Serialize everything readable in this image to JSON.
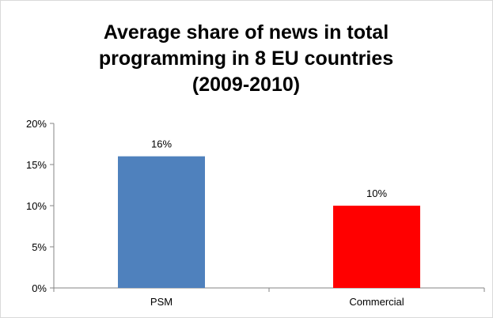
{
  "chart_data": {
    "type": "bar",
    "title": "Average share of news in total programming in 8 EU countries (2009-2010)",
    "title_lines": [
      "Average share of news in total",
      "programming in 8 EU countries",
      "(2009-2010)"
    ],
    "categories": [
      "PSM",
      "Commercial"
    ],
    "values": [
      16,
      10
    ],
    "data_labels": [
      "16%",
      "10%"
    ],
    "bar_colors": [
      "#4f81bd",
      "#ff0000"
    ],
    "ylim": [
      0,
      20
    ],
    "yticks": [
      0,
      5,
      10,
      15,
      20
    ],
    "ytick_labels": [
      "0%",
      "5%",
      "10%",
      "15%",
      "20%"
    ],
    "xlabel": "",
    "ylabel": "",
    "grid": false,
    "legend": "none"
  }
}
